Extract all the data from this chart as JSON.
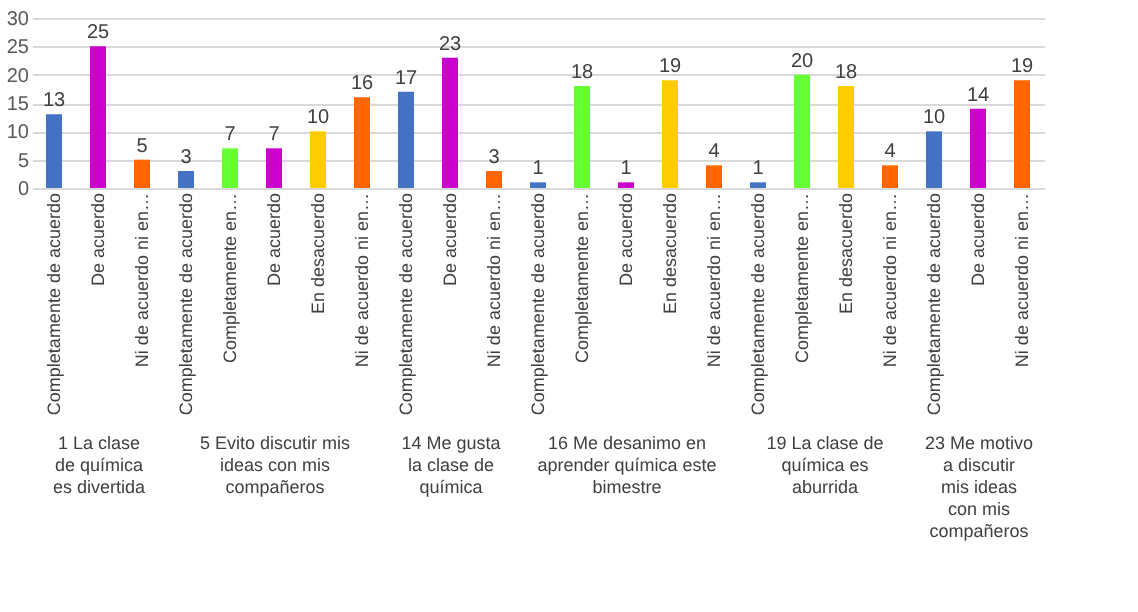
{
  "chart_data": [
    {
      "type": "bar",
      "xlabel": "1 La clase de química es divertida",
      "categories": [
        "Completamente de acuerdo",
        "De acuerdo",
        "Ni de acuerdo ni en…"
      ],
      "values": [
        13,
        25,
        5
      ],
      "colors": [
        "#4472c4",
        "#cc00cc",
        "#ff6600"
      ],
      "ylim": [
        0,
        30
      ],
      "yticks": [
        0,
        5,
        10,
        15,
        20,
        25,
        30
      ],
      "grid": "y",
      "data_labels": true
    },
    {
      "type": "bar",
      "xlabel": "5 Evito discutir mis ideas con mis compañeros",
      "categories": [
        "Completamente de acuerdo",
        "Completamente en…",
        "De acuerdo",
        "En desacuerdo",
        "Ni de acuerdo ni en…"
      ],
      "values": [
        3,
        7,
        7,
        10,
        16
      ],
      "colors": [
        "#4472c4",
        "#66ff33",
        "#cc00cc",
        "#ffcc00",
        "#ff6600"
      ],
      "ylim": [
        0,
        30
      ],
      "yticks": [
        0,
        5,
        10,
        15,
        20,
        25,
        30
      ],
      "grid": "y",
      "data_labels": true,
      "tick_labels": "x"
    },
    {
      "type": "bar",
      "xlabel": "14 Me gusta la clase de química",
      "categories": [
        "Completamente de acuerdo",
        "De acuerdo",
        "Ni de acuerdo ni en…"
      ],
      "values": [
        17,
        23,
        3
      ],
      "colors": [
        "#4472c4",
        "#cc00cc",
        "#ff6600"
      ],
      "ylim": [
        0,
        30
      ],
      "yticks": [
        0,
        5,
        10,
        15,
        20,
        25,
        30
      ],
      "grid": "y",
      "data_labels": true,
      "tick_labels": "x"
    },
    {
      "type": "bar",
      "xlabel": "16 Me desanimo en aprender química este bimestre",
      "categories": [
        "Completamente de acuerdo",
        "Completamente en…",
        "De acuerdo",
        "En desacuerdo",
        "Ni de acuerdo ni en…"
      ],
      "values": [
        1,
        18,
        1,
        19,
        4
      ],
      "colors": [
        "#4472c4",
        "#66ff33",
        "#cc00cc",
        "#ffcc00",
        "#ff6600"
      ],
      "ylim": [
        0,
        30
      ],
      "yticks": [
        0,
        5,
        10,
        15,
        20,
        25,
        30
      ],
      "grid": "y",
      "data_labels": true,
      "tick_labels": "x"
    },
    {
      "type": "bar",
      "xlabel": "19 La clase de química es aburrida",
      "categories": [
        "Completamente de acuerdo",
        "Completamente en…",
        "En desacuerdo",
        "Ni de acuerdo ni en…"
      ],
      "values": [
        1,
        20,
        18,
        4
      ],
      "colors": [
        "#4472c4",
        "#66ff33",
        "#ffcc00",
        "#ff6600"
      ],
      "ylim": [
        0,
        30
      ],
      "yticks": [
        0,
        5,
        10,
        15,
        20,
        25,
        30
      ],
      "grid": "y",
      "data_labels": true,
      "tick_labels": "x"
    },
    {
      "type": "bar",
      "xlabel": "23 Me motivo a discutir mis ideas con mis compañeros",
      "categories": [
        "Completamente de acuerdo",
        "De acuerdo",
        "Ni de acuerdo ni en…"
      ],
      "values": [
        10,
        14,
        19
      ],
      "colors": [
        "#4472c4",
        "#cc00cc",
        "#ff6600"
      ],
      "ylim": [
        0,
        30
      ],
      "yticks": [
        0,
        5,
        10,
        15,
        20,
        25,
        30
      ],
      "grid": "y",
      "data_labels": true,
      "tick_labels": "x"
    }
  ]
}
